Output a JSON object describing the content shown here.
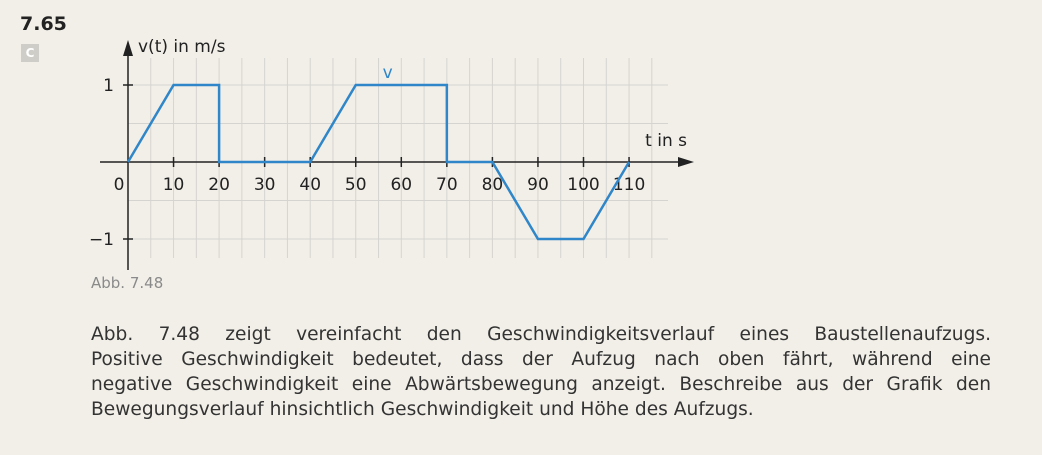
{
  "task": {
    "number": "7.65",
    "level": "C"
  },
  "chart_data": {
    "type": "line",
    "ylabel": "v(t) in m/s",
    "xlabel": "t in s",
    "x_ticks": [
      0,
      10,
      20,
      30,
      40,
      50,
      60,
      70,
      80,
      90,
      100,
      110
    ],
    "x_tick_labels": [
      "0",
      "10",
      "20",
      "30",
      "40",
      "50",
      "60",
      "70",
      "80",
      "90",
      "100",
      "110"
    ],
    "y_ticks": [
      1,
      -1
    ],
    "y_tick_labels": [
      "1",
      "−1"
    ],
    "xlim": [
      0,
      115
    ],
    "ylim": [
      -1,
      1
    ],
    "grid": true,
    "series": [
      {
        "name": "v",
        "color": "#2f86c9",
        "x": [
          0,
          10,
          20,
          20,
          40,
          50,
          70,
          70,
          80,
          90,
          100,
          110
        ],
        "y": [
          0,
          1,
          1,
          0,
          0,
          1,
          1,
          0,
          0,
          -1,
          -1,
          0
        ]
      }
    ]
  },
  "caption": "Abb. 7.48",
  "text_lines": [
    "Abb. 7.48 zeigt vereinfacht den Geschwindigkeitsverlauf eines Baustellenaufzugs.",
    "Positive Geschwindigkeit bedeutet, dass der Aufzug nach oben fährt, während eine",
    "negative Geschwindigkeit eine Abwärtsbewegung anzeigt. Beschreibe aus der Grafik den",
    "Bewegungsverlauf hinsichtlich Geschwindigkeit und Höhe des Aufzugs."
  ]
}
